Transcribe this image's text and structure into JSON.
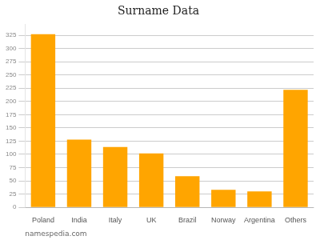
{
  "chart_data": {
    "type": "bar",
    "title": "Surname Data",
    "categories": [
      "Poland",
      "India",
      "Italy",
      "UK",
      "Brazil",
      "Norway",
      "Argentina",
      "Others"
    ],
    "values": [
      327,
      128,
      114,
      102,
      59,
      33,
      30,
      222
    ],
    "color": "#FFA500",
    "ylim": [
      0,
      345
    ],
    "yticks": [
      0,
      25,
      50,
      75,
      100,
      125,
      150,
      175,
      200,
      225,
      250,
      275,
      300,
      325
    ],
    "grid": true,
    "annotations": [
      "namespedia.com"
    ]
  }
}
